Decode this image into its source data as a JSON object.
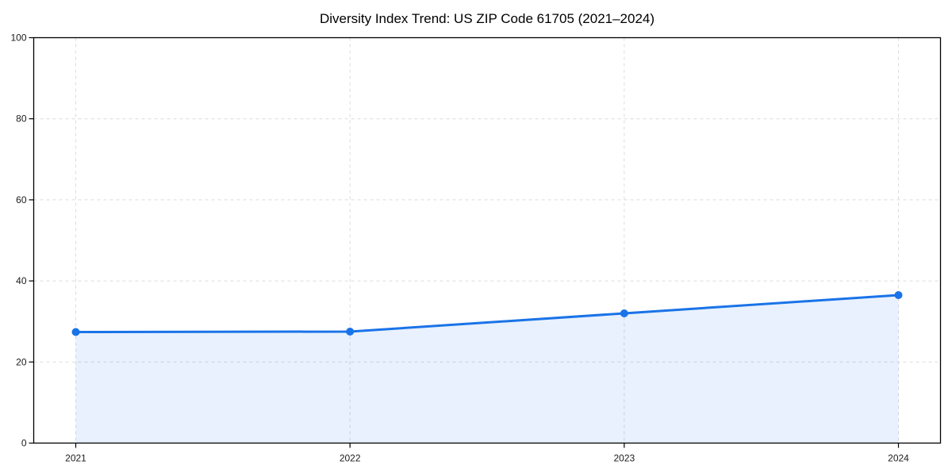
{
  "chart_data": {
    "type": "area",
    "title": "Diversity Index Trend: US ZIP Code 61705 (2021–2024)",
    "categories": [
      "2021",
      "2022",
      "2023",
      "2024"
    ],
    "series": [
      {
        "name": "Diversity Index",
        "values": [
          27.4,
          27.5,
          32.0,
          36.5
        ]
      }
    ],
    "xlabel": "",
    "ylabel": "",
    "ylim": [
      0,
      100
    ],
    "yticks": [
      0,
      20,
      40,
      60,
      80,
      100
    ],
    "grid": true,
    "legend": "none",
    "colors": {
      "line": "#1a73e8",
      "marker": "#1a73e8",
      "fill": "#1a73e8",
      "fill_opacity": 0.1,
      "gridline": "#dcdcdc",
      "spine": "#000000",
      "background": "#ffffff"
    }
  }
}
